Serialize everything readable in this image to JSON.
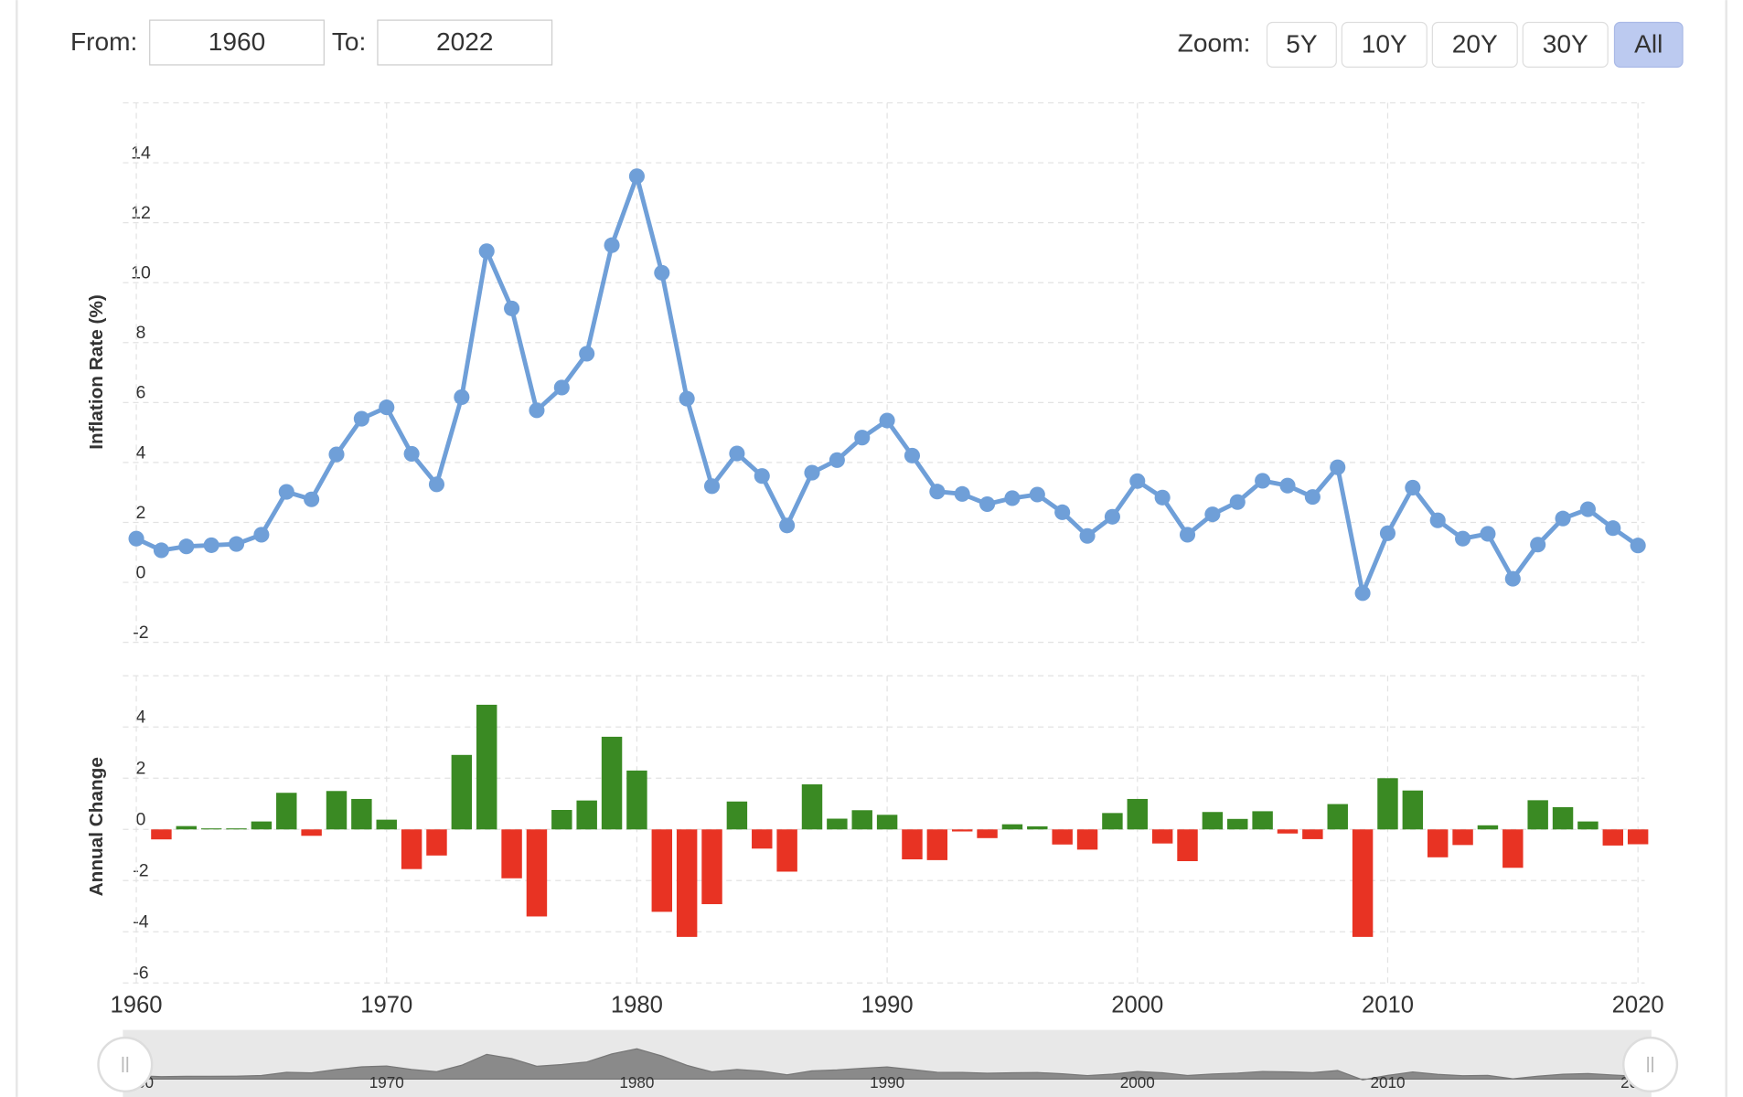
{
  "controls": {
    "from_label": "From:",
    "from_value": "1960",
    "to_label": "To:",
    "to_value": "2022",
    "zoom_label": "Zoom:",
    "zoom_buttons": [
      "5Y",
      "10Y",
      "20Y",
      "30Y",
      "All"
    ],
    "active_zoom": 4
  },
  "chart_data": [
    {
      "type": "line",
      "y_label": "Inflation Rate (%)",
      "color": "#6f9fd8",
      "x": [
        1960,
        1961,
        1962,
        1963,
        1964,
        1965,
        1966,
        1967,
        1968,
        1969,
        1970,
        1971,
        1972,
        1973,
        1974,
        1975,
        1976,
        1977,
        1978,
        1979,
        1980,
        1981,
        1982,
        1983,
        1984,
        1985,
        1986,
        1987,
        1988,
        1989,
        1990,
        1991,
        1992,
        1993,
        1994,
        1995,
        1996,
        1997,
        1998,
        1999,
        2000,
        2001,
        2002,
        2003,
        2004,
        2005,
        2006,
        2007,
        2008,
        2009,
        2010,
        2011,
        2012,
        2013,
        2014,
        2015,
        2016,
        2017,
        2018,
        2019,
        2020
      ],
      "values": [
        1.46,
        1.07,
        1.2,
        1.24,
        1.28,
        1.59,
        3.02,
        2.77,
        4.27,
        5.46,
        5.84,
        4.29,
        3.27,
        6.18,
        11.05,
        9.14,
        5.74,
        6.5,
        7.63,
        11.25,
        13.55,
        10.33,
        6.13,
        3.21,
        4.3,
        3.55,
        1.9,
        3.66,
        4.08,
        4.83,
        5.4,
        4.23,
        3.03,
        2.95,
        2.61,
        2.81,
        2.93,
        2.34,
        1.55,
        2.19,
        3.38,
        2.83,
        1.59,
        2.27,
        2.68,
        3.39,
        3.23,
        2.85,
        3.84,
        -0.36,
        1.64,
        3.16,
        2.07,
        1.46,
        1.62,
        0.12,
        1.26,
        2.13,
        2.44,
        1.81,
        1.23
      ],
      "xlim": [
        1960,
        2020
      ],
      "xticks": [
        1960,
        1970,
        1980,
        1990,
        2000,
        2010,
        2020
      ],
      "ylim": [
        -2,
        16
      ],
      "yticks": [
        -2,
        0,
        2,
        4,
        6,
        8,
        10,
        12,
        14
      ],
      "grid": true
    },
    {
      "type": "bar",
      "y_label": "Annual Change",
      "positive_color": "#3a8a23",
      "negative_color": "#e83323",
      "x": [
        1960,
        1961,
        1962,
        1963,
        1964,
        1965,
        1966,
        1967,
        1968,
        1969,
        1970,
        1971,
        1972,
        1973,
        1974,
        1975,
        1976,
        1977,
        1978,
        1979,
        1980,
        1981,
        1982,
        1983,
        1984,
        1985,
        1986,
        1987,
        1988,
        1989,
        1990,
        1991,
        1992,
        1993,
        1994,
        1995,
        1996,
        1997,
        1998,
        1999,
        2000,
        2001,
        2002,
        2003,
        2004,
        2005,
        2006,
        2007,
        2008,
        2009,
        2010,
        2011,
        2012,
        2013,
        2014,
        2015,
        2016,
        2017,
        2018,
        2019,
        2020
      ],
      "values": [
        null,
        -0.39,
        0.13,
        0.04,
        0.04,
        0.31,
        1.43,
        -0.25,
        1.5,
        1.19,
        0.38,
        -1.55,
        -1.02,
        2.91,
        4.87,
        -1.91,
        -3.4,
        0.76,
        1.13,
        3.62,
        2.3,
        -3.22,
        -4.2,
        -2.92,
        1.09,
        -0.75,
        -1.65,
        1.76,
        0.42,
        0.75,
        0.57,
        -1.17,
        -1.2,
        -0.08,
        -0.34,
        0.2,
        0.12,
        -0.59,
        -0.79,
        0.64,
        1.19,
        -0.55,
        -1.24,
        0.68,
        0.41,
        0.71,
        -0.16,
        -0.38,
        0.99,
        -4.2,
        2.0,
        1.52,
        -1.09,
        -0.61,
        0.16,
        -1.5,
        1.14,
        0.87,
        0.31,
        -0.63,
        -0.58
      ],
      "xlim": [
        1960,
        2020
      ],
      "xticks": [
        1960,
        1970,
        1980,
        1990,
        2000,
        2010,
        2020
      ],
      "ylim": [
        -6,
        6
      ],
      "yticks": [
        -6,
        -4,
        -2,
        0,
        2,
        4
      ],
      "grid": true
    }
  ]
}
